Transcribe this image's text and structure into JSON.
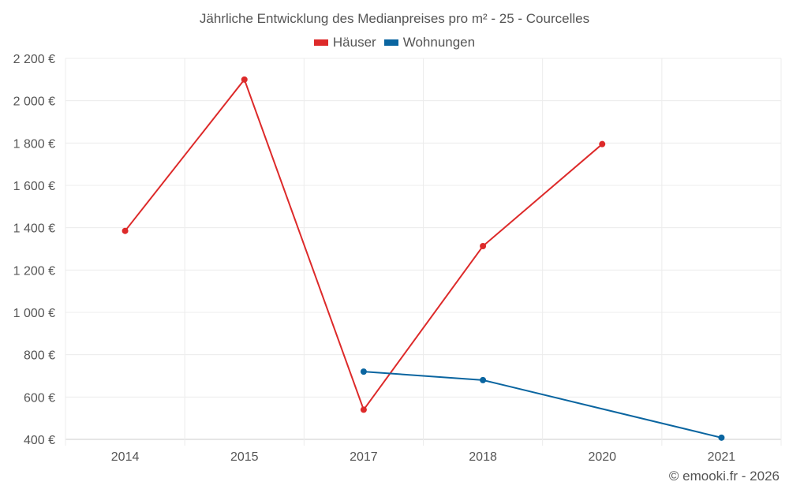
{
  "chart_data": {
    "type": "line",
    "title": "Jährliche Entwicklung des Medianpreises pro m² - 25 - Courcelles",
    "categories": [
      "2014",
      "2015",
      "2017",
      "2018",
      "2020",
      "2021"
    ],
    "ylim": [
      400,
      2200
    ],
    "yticks": [
      400,
      600,
      800,
      1000,
      1200,
      1400,
      1600,
      1800,
      2000,
      2200
    ],
    "ytick_labels": [
      "400 €",
      "600 €",
      "800 €",
      "1 000 €",
      "1 200 €",
      "1 400 €",
      "1 600 €",
      "1 800 €",
      "2 000 €",
      "2 200 €"
    ],
    "grid": true,
    "legend_position": "top-center",
    "series": [
      {
        "name": "Häuser",
        "color": "#dd2a2a",
        "values": [
          1385,
          2100,
          540,
          1313,
          1795,
          null
        ]
      },
      {
        "name": "Wohnungen",
        "color": "#0a65a0",
        "values": [
          null,
          null,
          720,
          680,
          null,
          408
        ]
      }
    ]
  },
  "credit": "© emooki.fr - 2026"
}
